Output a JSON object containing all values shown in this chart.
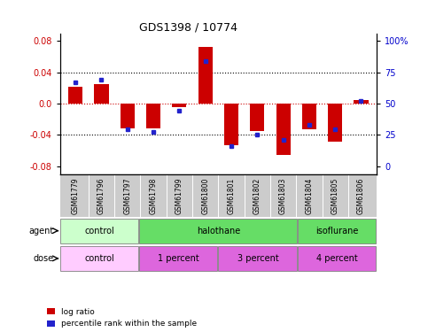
{
  "title": "GDS1398 / 10774",
  "samples": [
    "GSM61779",
    "GSM61796",
    "GSM61797",
    "GSM61798",
    "GSM61799",
    "GSM61800",
    "GSM61801",
    "GSM61802",
    "GSM61803",
    "GSM61804",
    "GSM61805",
    "GSM61806"
  ],
  "log_ratio": [
    0.022,
    0.025,
    -0.032,
    -0.032,
    -0.004,
    0.072,
    -0.053,
    -0.035,
    -0.065,
    -0.033,
    -0.048,
    0.005
  ],
  "percentile": [
    65,
    67,
    32,
    30,
    45,
    80,
    20,
    28,
    24,
    35,
    32,
    52
  ],
  "ylim": [
    -0.09,
    0.09
  ],
  "yticks_left": [
    -0.08,
    -0.04,
    0.0,
    0.04,
    0.08
  ],
  "yticks_right": [
    0,
    25,
    50,
    75,
    100
  ],
  "bar_color": "#cc0000",
  "dot_color": "#2222cc",
  "agent_groups": [
    {
      "label": "control",
      "start": 0,
      "end": 3,
      "color": "#ccffcc"
    },
    {
      "label": "halothane",
      "start": 3,
      "end": 9,
      "color": "#66dd66"
    },
    {
      "label": "isoflurane",
      "start": 9,
      "end": 12,
      "color": "#66dd66"
    }
  ],
  "dose_groups": [
    {
      "label": "control",
      "start": 0,
      "end": 3,
      "color": "#ffccff"
    },
    {
      "label": "1 percent",
      "start": 3,
      "end": 6,
      "color": "#dd66dd"
    },
    {
      "label": "3 percent",
      "start": 6,
      "end": 9,
      "color": "#dd66dd"
    },
    {
      "label": "4 percent",
      "start": 9,
      "end": 12,
      "color": "#dd66dd"
    }
  ],
  "legend_red": "log ratio",
  "legend_blue": "percentile rank within the sample",
  "bar_width": 0.55,
  "hline0_color": "#cc0000",
  "hline_color": "black",
  "bg_color": "#ffffff",
  "tick_area_color": "#cccccc",
  "left_label_color": "#cc0000",
  "right_label_color": "#0000cc"
}
